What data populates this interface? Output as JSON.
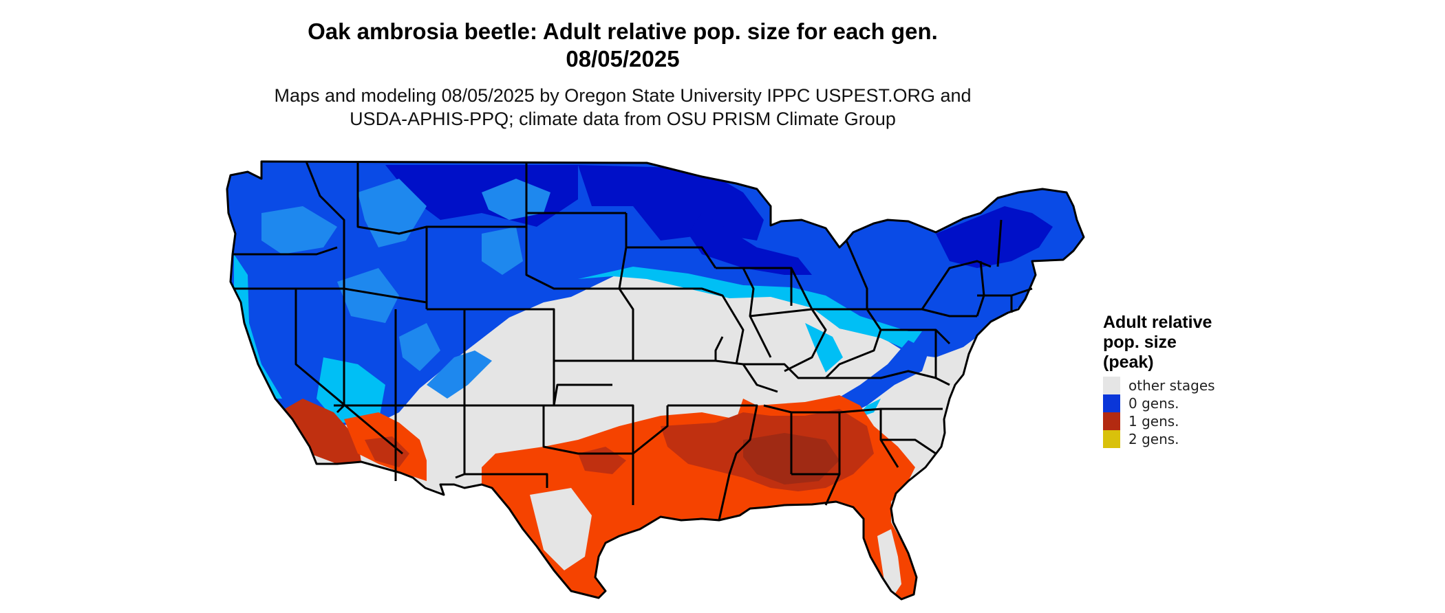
{
  "header": {
    "title_line1": "Oak ambrosia beetle: Adult relative pop. size for each gen.",
    "title_line2": "08/05/2025",
    "subtitle_line1": "Maps and modeling 08/05/2025 by Oregon State University IPPC USPEST.ORG and",
    "subtitle_line2": "USDA-APHIS-PPQ; climate data from OSU PRISM Climate Group"
  },
  "legend": {
    "title_line1": "Adult relative",
    "title_line2": "pop. size",
    "title_line3": "(peak)",
    "items": [
      {
        "label": "other stages",
        "color": "#e5e5e5"
      },
      {
        "label": "0 gens.",
        "color": "#0a36d9"
      },
      {
        "label": "1 gens.",
        "color": "#b32a11"
      },
      {
        "label": "2 gens.",
        "color": "#d9c10b"
      }
    ]
  },
  "map": {
    "colors": {
      "grey": "#e5e5e5",
      "blue_dark": "#0010c8",
      "blue": "#0a4be6",
      "blue_mid": "#1e88ee",
      "blue_light": "#00bff5",
      "orange": "#f54300",
      "red": "#c03010",
      "red_dark": "#a02a14",
      "border": "#000000"
    }
  }
}
